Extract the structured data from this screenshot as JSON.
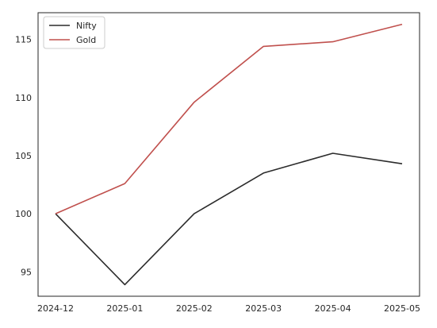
{
  "chart_data": {
    "type": "line",
    "title": "",
    "xlabel": "",
    "ylabel": "",
    "x": [
      "2024-12",
      "2025-01",
      "2025-02",
      "2025-03",
      "2025-04",
      "2025-05"
    ],
    "series": [
      {
        "name": "Nifty",
        "color": "#2b2b2b",
        "values": [
          100.0,
          93.9,
          100.0,
          103.5,
          105.2,
          104.3
        ]
      },
      {
        "name": "Gold",
        "color": "#c0504d",
        "values": [
          100.0,
          102.6,
          109.6,
          114.4,
          114.8,
          116.3
        ]
      }
    ],
    "ylim": [
      92.9,
      117.3
    ],
    "yticks": [
      95,
      100,
      105,
      110,
      115
    ],
    "grid": false,
    "legend": {
      "placement": "top-left"
    }
  }
}
